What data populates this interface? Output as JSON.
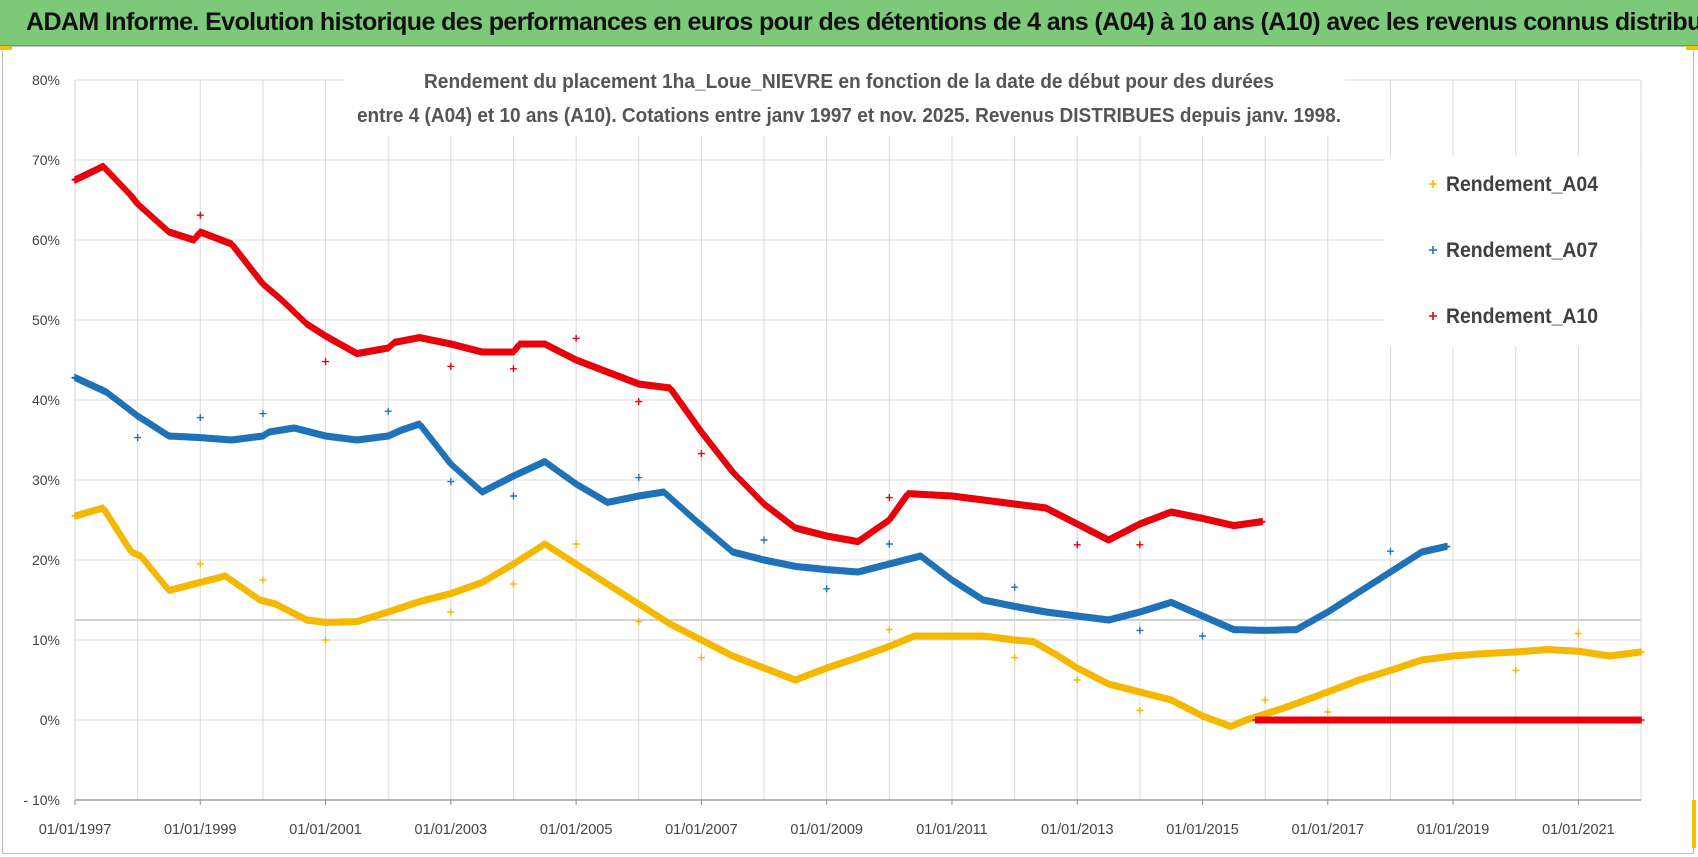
{
  "banner": {
    "title": "ADAM Informe. Evolution historique des performances en euros pour des détentions de 4 ans (A04) à 10 ans (A10) avec les revenus connus distribués"
  },
  "colors": {
    "banner_bg": "#7dc97a",
    "A04": "#f5b800",
    "A07": "#1f72b8",
    "A10": "#e8000b",
    "grid": "#d9d9d9"
  },
  "chart_data": {
    "type": "scatter",
    "title_lines": [
      "Rendement du placement 1ha_Loue_NIEVRE en fonction de la date de début pour des durées",
      "entre 4 (A04) et 10 ans (A10).  Cotations entre janv 1997 et nov. 2025. Revenus DISTRIBUES depuis janv. 1998."
    ],
    "xlabel": "",
    "ylabel": "",
    "x_unit": "year",
    "xlim": [
      1997.0,
      2022.0
    ],
    "ylim": [
      -10,
      80
    ],
    "y_ticks": [
      -10,
      0,
      10,
      20,
      30,
      40,
      50,
      60,
      70,
      80
    ],
    "y_tick_labels": [
      "- 10%",
      "0%",
      "10%",
      "20%",
      "30%",
      "40%",
      "50%",
      "60%",
      "70%",
      "80%"
    ],
    "x_ticks": [
      1997,
      1999,
      2001,
      2003,
      2005,
      2007,
      2009,
      2011,
      2013,
      2015,
      2017,
      2019,
      2021
    ],
    "x_tick_labels": [
      "01/01/1997",
      "01/01/1999",
      "01/01/2001",
      "01/01/2003",
      "01/01/2005",
      "01/01/2007",
      "01/01/2009",
      "01/01/2011",
      "01/01/2013",
      "01/01/2015",
      "01/01/2017",
      "01/01/2019",
      "01/01/2021"
    ],
    "x_minor_gridlines": [
      1998,
      2000,
      2002,
      2004,
      2006,
      2008,
      2010,
      2012,
      2014,
      2016,
      2018,
      2020
    ],
    "reference_line_y": 12.5,
    "legend_position": "top-right",
    "series": [
      {
        "name": "Rendement_A04",
        "color": "#f5b800",
        "points": [
          [
            1997.0,
            25.5
          ],
          [
            1997.45,
            26.5
          ],
          [
            1997.9,
            21.0
          ],
          [
            1998.05,
            20.5
          ],
          [
            1998.5,
            16.2
          ],
          [
            1998.9,
            17.0
          ],
          [
            1999.4,
            18.0
          ],
          [
            1999.95,
            15.0
          ],
          [
            2000.2,
            14.5
          ],
          [
            2000.7,
            12.5
          ],
          [
            2001.0,
            12.2
          ],
          [
            2001.5,
            12.3
          ],
          [
            2002.0,
            13.5
          ],
          [
            2002.5,
            14.8
          ],
          [
            2003.0,
            15.8
          ],
          [
            2003.5,
            17.2
          ],
          [
            2004.0,
            19.5
          ],
          [
            2004.5,
            22.0
          ],
          [
            2005.0,
            19.5
          ],
          [
            2005.5,
            17.0
          ],
          [
            2006.0,
            14.5
          ],
          [
            2006.5,
            12.0
          ],
          [
            2007.0,
            10.0
          ],
          [
            2007.5,
            8.0
          ],
          [
            2008.0,
            6.5
          ],
          [
            2008.5,
            5.0
          ],
          [
            2009.0,
            6.5
          ],
          [
            2009.5,
            7.8
          ],
          [
            2010.0,
            9.2
          ],
          [
            2010.4,
            10.5
          ],
          [
            2011.0,
            10.5
          ],
          [
            2011.5,
            10.5
          ],
          [
            2012.0,
            10.0
          ],
          [
            2012.3,
            9.8
          ],
          [
            2012.7,
            8.0
          ],
          [
            2013.0,
            6.5
          ],
          [
            2013.5,
            4.5
          ],
          [
            2014.0,
            3.5
          ],
          [
            2014.5,
            2.5
          ],
          [
            2015.0,
            0.5
          ],
          [
            2015.45,
            -0.8
          ],
          [
            2015.7,
            0.0
          ],
          [
            2016.3,
            1.5
          ],
          [
            2017.0,
            3.5
          ],
          [
            2017.5,
            5.0
          ],
          [
            2018.0,
            6.2
          ],
          [
            2018.5,
            7.5
          ],
          [
            2019.0,
            8.0
          ],
          [
            2019.5,
            8.3
          ],
          [
            2020.0,
            8.5
          ],
          [
            2020.5,
            8.8
          ],
          [
            2021.0,
            8.6
          ],
          [
            2021.5,
            8.0
          ],
          [
            2022.0,
            8.5
          ]
        ],
        "outliers": [
          [
            1999.0,
            19.5
          ],
          [
            2000.0,
            17.5
          ],
          [
            2001.0,
            10.0
          ],
          [
            2003.0,
            13.5
          ],
          [
            2004.0,
            17.0
          ],
          [
            2005.0,
            22.0
          ],
          [
            2006.0,
            12.3
          ],
          [
            2007.0,
            7.8
          ],
          [
            2010.0,
            11.3
          ],
          [
            2012.0,
            7.8
          ],
          [
            2013.0,
            5.0
          ],
          [
            2014.0,
            1.2
          ],
          [
            2016.0,
            2.5
          ],
          [
            2017.0,
            1.0
          ],
          [
            2020.0,
            6.2
          ],
          [
            2021.0,
            10.8
          ]
        ]
      },
      {
        "name": "Rendement_A07",
        "color": "#1f72b8",
        "points": [
          [
            1997.0,
            42.8
          ],
          [
            1997.5,
            41.0
          ],
          [
            1998.0,
            38.0
          ],
          [
            1998.5,
            35.5
          ],
          [
            1999.0,
            35.3
          ],
          [
            1999.5,
            35.0
          ],
          [
            2000.0,
            35.5
          ],
          [
            2000.1,
            36.0
          ],
          [
            2000.5,
            36.5
          ],
          [
            2001.0,
            35.5
          ],
          [
            2001.5,
            35.0
          ],
          [
            2002.0,
            35.5
          ],
          [
            2002.2,
            36.2
          ],
          [
            2002.5,
            37.0
          ],
          [
            2003.0,
            32.0
          ],
          [
            2003.5,
            28.5
          ],
          [
            2004.0,
            30.5
          ],
          [
            2004.5,
            32.3
          ],
          [
            2005.0,
            29.5
          ],
          [
            2005.5,
            27.2
          ],
          [
            2006.0,
            28.0
          ],
          [
            2006.4,
            28.5
          ],
          [
            2006.9,
            25.0
          ],
          [
            2007.5,
            21.0
          ],
          [
            2008.0,
            20.0
          ],
          [
            2008.5,
            19.2
          ],
          [
            2009.0,
            18.8
          ],
          [
            2009.5,
            18.5
          ],
          [
            2010.0,
            19.5
          ],
          [
            2010.5,
            20.5
          ],
          [
            2011.0,
            17.5
          ],
          [
            2011.5,
            15.0
          ],
          [
            2012.0,
            14.2
          ],
          [
            2012.5,
            13.5
          ],
          [
            2013.0,
            13.0
          ],
          [
            2013.5,
            12.5
          ],
          [
            2014.0,
            13.5
          ],
          [
            2014.5,
            14.7
          ],
          [
            2015.0,
            13.0
          ],
          [
            2015.5,
            11.3
          ],
          [
            2016.0,
            11.2
          ],
          [
            2016.5,
            11.3
          ],
          [
            2017.0,
            13.5
          ],
          [
            2017.5,
            16.0
          ],
          [
            2018.0,
            18.5
          ],
          [
            2018.5,
            21.0
          ],
          [
            2018.9,
            21.7
          ]
        ],
        "outliers": [
          [
            1998.0,
            35.3
          ],
          [
            1999.0,
            37.8
          ],
          [
            2000.0,
            38.3
          ],
          [
            2002.0,
            38.6
          ],
          [
            2003.0,
            29.8
          ],
          [
            2004.0,
            28.0
          ],
          [
            2006.0,
            30.3
          ],
          [
            2008.0,
            22.5
          ],
          [
            2009.0,
            16.4
          ],
          [
            2010.0,
            22.0
          ],
          [
            2012.0,
            16.6
          ],
          [
            2014.0,
            11.2
          ],
          [
            2015.0,
            10.5
          ],
          [
            2018.0,
            21.1
          ]
        ]
      },
      {
        "name": "Rendement_A10",
        "color": "#e8000b",
        "points": [
          [
            1997.0,
            67.5
          ],
          [
            1997.45,
            69.2
          ],
          [
            1997.9,
            65.5
          ],
          [
            1998.0,
            64.5
          ],
          [
            1998.5,
            61.0
          ],
          [
            1998.9,
            60.0
          ],
          [
            1999.0,
            61.0
          ],
          [
            1999.5,
            59.5
          ],
          [
            2000.0,
            54.5
          ],
          [
            2000.3,
            52.5
          ],
          [
            2000.7,
            49.5
          ],
          [
            2001.0,
            48.0
          ],
          [
            2001.5,
            45.8
          ],
          [
            2002.0,
            46.5
          ],
          [
            2002.1,
            47.2
          ],
          [
            2002.5,
            47.8
          ],
          [
            2003.0,
            47.0
          ],
          [
            2003.5,
            46.0
          ],
          [
            2004.0,
            46.0
          ],
          [
            2004.1,
            47.0
          ],
          [
            2004.5,
            47.0
          ],
          [
            2005.0,
            45.0
          ],
          [
            2005.5,
            43.5
          ],
          [
            2006.0,
            42.0
          ],
          [
            2006.5,
            41.5
          ],
          [
            2007.0,
            36.0
          ],
          [
            2007.5,
            31.0
          ],
          [
            2008.0,
            27.0
          ],
          [
            2008.5,
            24.0
          ],
          [
            2009.0,
            23.0
          ],
          [
            2009.5,
            22.3
          ],
          [
            2010.0,
            25.0
          ],
          [
            2010.3,
            28.3
          ],
          [
            2011.0,
            28.0
          ],
          [
            2011.5,
            27.5
          ],
          [
            2012.0,
            27.0
          ],
          [
            2012.5,
            26.5
          ],
          [
            2013.0,
            24.5
          ],
          [
            2013.5,
            22.5
          ],
          [
            2014.0,
            24.5
          ],
          [
            2014.5,
            26.0
          ],
          [
            2015.0,
            25.2
          ],
          [
            2015.5,
            24.3
          ],
          [
            2015.95,
            24.8
          ]
        ],
        "outliers": [
          [
            1999.0,
            63.1
          ],
          [
            2001.0,
            44.8
          ],
          [
            2003.0,
            44.2
          ],
          [
            2004.0,
            43.9
          ],
          [
            2005.0,
            47.7
          ],
          [
            2006.0,
            39.8
          ],
          [
            2007.0,
            33.3
          ],
          [
            2010.0,
            27.8
          ],
          [
            2013.0,
            21.9
          ],
          [
            2014.0,
            21.9
          ]
        ],
        "zero_segment": [
          2015.85,
          2022.0
        ]
      }
    ]
  }
}
